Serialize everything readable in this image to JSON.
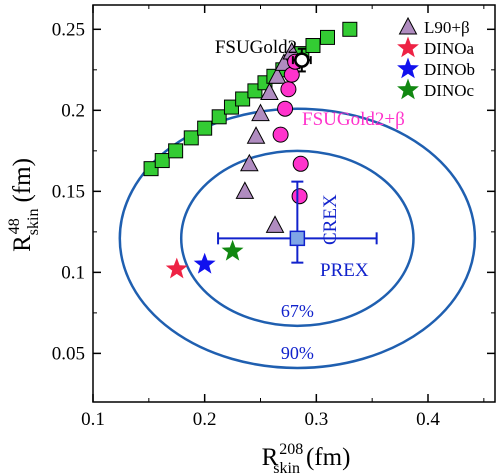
{
  "chart_data": {
    "type": "scatter",
    "xlabel": {
      "main": "R",
      "sub": "skin",
      "sup": "208",
      "unit": "(fm)"
    },
    "ylabel": {
      "main": "R",
      "sub": "skin",
      "sup": "48",
      "unit": "(fm)"
    },
    "xlim": [
      0.1,
      0.46
    ],
    "ylim": [
      0.02,
      0.265
    ],
    "xticks": [
      0.1,
      0.2,
      0.3,
      0.4
    ],
    "xtick_labels": [
      "0.1",
      "0.2",
      "0.3",
      "0.4"
    ],
    "yticks": [
      0.05,
      0.1,
      0.15,
      0.2,
      0.25
    ],
    "ytick_labels": [
      "0.05",
      "0.1",
      "0.15",
      "0.2",
      "0.25"
    ],
    "grid": false,
    "legend_position": "top-right",
    "series": [
      {
        "name": "",
        "marker": "square",
        "color": "#33cc33",
        "x": [
          0.152,
          0.162,
          0.174,
          0.188,
          0.2,
          0.213,
          0.224,
          0.234,
          0.245,
          0.254,
          0.262,
          0.27,
          0.279,
          0.287,
          0.297,
          0.31,
          0.33
        ],
        "y": [
          0.164,
          0.169,
          0.175,
          0.183,
          0.189,
          0.196,
          0.202,
          0.207,
          0.212,
          0.217,
          0.221,
          0.225,
          0.23,
          0.235,
          0.24,
          0.245,
          0.25
        ]
      },
      {
        "name": "L90+β",
        "marker": "triangle",
        "color": "#b08cc0",
        "x": [
          0.263,
          0.236,
          0.24,
          0.246,
          0.25,
          0.258,
          0.265,
          0.271,
          0.278
        ],
        "y": [
          0.129,
          0.15,
          0.167,
          0.184,
          0.198,
          0.211,
          0.221,
          0.229,
          0.236
        ]
      },
      {
        "name": "FSUGold2+β",
        "marker": "circle",
        "color": "#ff33cc",
        "x": [
          0.285,
          0.286,
          0.268,
          0.272,
          0.275,
          0.278,
          0.281
        ],
        "y": [
          0.147,
          0.167,
          0.185,
          0.201,
          0.213,
          0.222,
          0.23
        ]
      },
      {
        "name": "DINOa",
        "marker": "star",
        "color": "#ee2244",
        "x": [
          0.175
        ],
        "y": [
          0.102
        ]
      },
      {
        "name": "DINOb",
        "marker": "star",
        "color": "#1111ee",
        "x": [
          0.2
        ],
        "y": [
          0.105
        ]
      },
      {
        "name": "DINOc",
        "marker": "star",
        "color": "#118811",
        "x": [
          0.225
        ],
        "y": [
          0.113
        ]
      }
    ],
    "reference_points": [
      {
        "label": "FSUGold2",
        "x": 0.287,
        "y": 0.231,
        "x_err": 0.008,
        "y_err": 0.007
      },
      {
        "label": "PREX",
        "x": 0.283,
        "y": 0.121,
        "x_err": 0.071
      },
      {
        "label": "CREX",
        "x": 0.283,
        "y": 0.121,
        "y_err_low": 0.106,
        "y_err_high": 0.156
      }
    ],
    "ellipses": [
      {
        "label": "67%",
        "cx": 0.283,
        "cy": 0.121,
        "rx": 0.104,
        "ry": 0.054
      },
      {
        "label": "90%",
        "cx": 0.283,
        "cy": 0.121,
        "rx": 0.159,
        "ry": 0.08
      }
    ],
    "colors": {
      "measurement": "#1122cc",
      "ellipse": "#1f5fb0"
    }
  }
}
